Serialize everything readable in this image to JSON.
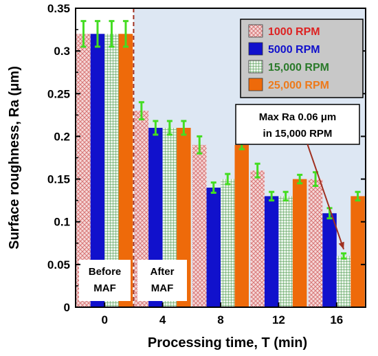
{
  "chart_data": {
    "type": "bar",
    "title": "",
    "xlabel": "Processing time, T (min)",
    "ylabel": "Surface roughness, Ra (μm)",
    "categories": [
      "0",
      "4",
      "8",
      "12",
      "16"
    ],
    "ylim": [
      0,
      0.35
    ],
    "yticks": [
      "0",
      "0.05",
      "0.1",
      "0.15",
      "0.2",
      "0.25",
      "0.3",
      "0.35"
    ],
    "grid": false,
    "legend_position": "top-right",
    "series": [
      {
        "name": "1000 RPM",
        "color": "#e8b4b4",
        "pattern": "crosshatch",
        "label_color": "#dd2222",
        "values": [
          0.32,
          0.23,
          0.19,
          0.16,
          0.15
        ],
        "errors": [
          0.015,
          0.01,
          0.01,
          0.008,
          0.008
        ]
      },
      {
        "name": "5000 RPM",
        "color": "#1111cc",
        "pattern": "solid",
        "label_color": "#1111cc",
        "values": [
          0.32,
          0.21,
          0.14,
          0.13,
          0.11
        ],
        "errors": [
          0.015,
          0.008,
          0.006,
          0.005,
          0.006
        ]
      },
      {
        "name": "15,000 RPM",
        "color": "#2a7a2a",
        "pattern": "grid",
        "label_color": "#2a7a2a",
        "values": [
          0.32,
          0.21,
          0.15,
          0.13,
          0.06
        ],
        "errors": [
          0.015,
          0.008,
          0.006,
          0.005,
          0.003
        ]
      },
      {
        "name": "25,000 RPM",
        "color": "#ee6a0a",
        "pattern": "solid",
        "label_color": "#ee7a1a",
        "values": [
          0.32,
          0.21,
          0.19,
          0.15,
          0.13
        ],
        "errors": [
          0.015,
          0.008,
          0.005,
          0.005,
          0.005
        ]
      }
    ],
    "phase_labels": [
      {
        "text": [
          "Before",
          "MAF"
        ]
      },
      {
        "text": [
          "After",
          "MAF"
        ]
      }
    ],
    "annotation": {
      "lines": [
        "Max Ra 0.06 μm",
        "in 15,000 RPM"
      ],
      "target_series": 2,
      "target_category": 4
    },
    "colors": {
      "plot_background": "#dde7f3",
      "before_background": "#ffffff",
      "error_bar": "#44dd22",
      "divider": "#a03020",
      "legend_background": "#c8c8c8",
      "arrow": "#a03020"
    }
  }
}
